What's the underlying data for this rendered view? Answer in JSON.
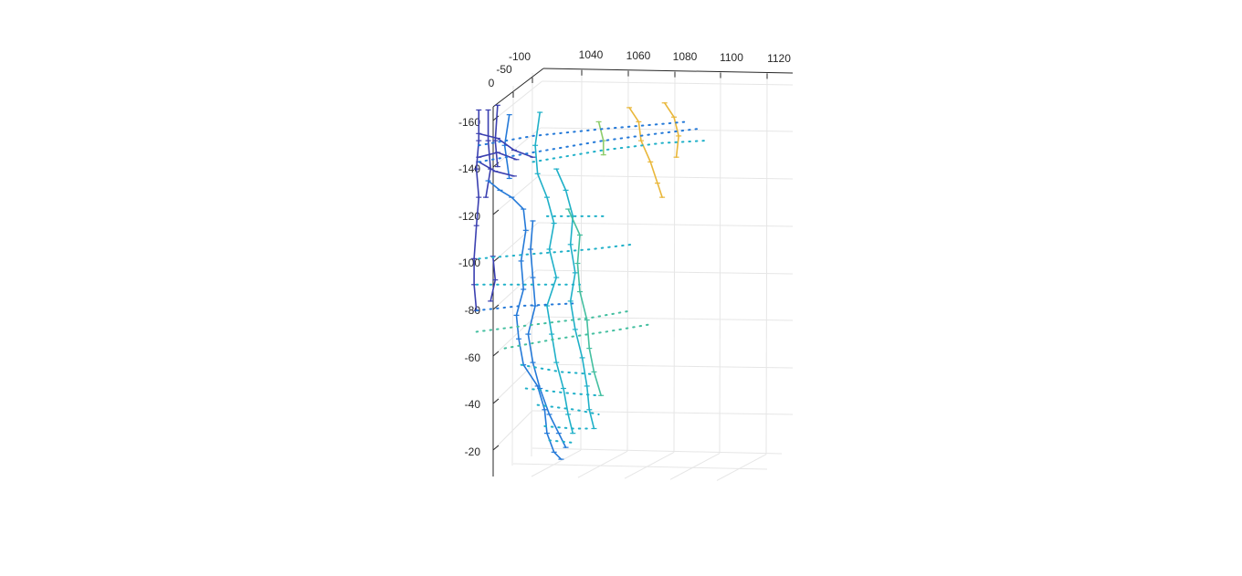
{
  "chart_data": {
    "type": "scatter3d",
    "title": "",
    "xlabel": "",
    "ylabel": "",
    "zlabel": "",
    "grid": true,
    "legend": "none",
    "colormap": "parula",
    "x_axis": {
      "ticks": [
        "1040",
        "1060",
        "1080",
        "1100",
        "1120"
      ],
      "range": [
        1020,
        1127
      ]
    },
    "y_axis": {
      "ticks": [
        "-100",
        "-50",
        "0"
      ],
      "range": [
        -100,
        0
      ]
    },
    "z_axis": {
      "ticks": [
        "-160",
        "-140",
        "-120",
        "-100",
        "-80",
        "-60",
        "-40",
        "-20"
      ],
      "range": [
        -175,
        -12
      ]
    },
    "colors": {
      "dark_blue": "#3a3fb0",
      "blue": "#2479d8",
      "cyan": "#1fb0c8",
      "teal": "#44bfa0",
      "green": "#8dcc6a",
      "yellow_orange": "#e9b73a",
      "yellow": "#f7d13d",
      "grid": "#e6e6e6",
      "axis": "#262626"
    },
    "series": [
      {
        "color": "dark_blue",
        "style": "solid",
        "points": [
          [
            1017,
            -165
          ],
          [
            1017,
            -152
          ],
          [
            1016,
            -140
          ],
          [
            1017,
            -128
          ],
          [
            1016,
            -116
          ],
          [
            1015,
            -102
          ],
          [
            1015,
            -91
          ],
          [
            1016,
            -80
          ]
        ]
      },
      {
        "color": "dark_blue",
        "style": "solid",
        "points": [
          [
            1021,
            -165
          ],
          [
            1021,
            -152
          ],
          [
            1022,
            -140
          ],
          [
            1020,
            -128
          ]
        ]
      },
      {
        "color": "dark_blue",
        "style": "solid",
        "points": [
          [
            1025,
            -167
          ],
          [
            1024,
            -152
          ],
          [
            1025,
            -141
          ]
        ]
      },
      {
        "color": "dark_blue",
        "style": "solid",
        "points": [
          [
            1023,
            -103
          ],
          [
            1024,
            -93
          ],
          [
            1022,
            -84
          ]
        ]
      },
      {
        "color": "blue",
        "style": "solid",
        "points": [
          [
            1030,
            -163
          ],
          [
            1028,
            -150
          ],
          [
            1030,
            -136
          ]
        ]
      },
      {
        "color": "blue",
        "style": "solid",
        "points": [
          [
            1021,
            -135
          ],
          [
            1026,
            -131
          ],
          [
            1031,
            -128
          ],
          [
            1036,
            -123
          ],
          [
            1037,
            -114
          ],
          [
            1035,
            -101
          ],
          [
            1036,
            -89
          ],
          [
            1033,
            -78
          ],
          [
            1034,
            -68
          ],
          [
            1036,
            -57
          ],
          [
            1042,
            -48
          ],
          [
            1045,
            -38
          ],
          [
            1046,
            -28
          ],
          [
            1049,
            -20
          ],
          [
            1052,
            -17
          ]
        ]
      },
      {
        "color": "dark_blue",
        "style": "solid",
        "points": [
          [
            1017,
            -155
          ],
          [
            1025,
            -153
          ],
          [
            1032,
            -148
          ],
          [
            1040,
            -145
          ]
        ]
      },
      {
        "color": "dark_blue",
        "style": "solid",
        "points": [
          [
            1017,
            -145
          ],
          [
            1025,
            -147
          ],
          [
            1033,
            -144
          ]
        ]
      },
      {
        "color": "dark_blue",
        "style": "solid",
        "points": [
          [
            1017,
            -143
          ],
          [
            1024,
            -139
          ],
          [
            1032,
            -137
          ]
        ]
      },
      {
        "color": "blue",
        "style": "solid",
        "points": [
          [
            1040,
            -118
          ],
          [
            1039,
            -106
          ],
          [
            1040,
            -94
          ],
          [
            1041,
            -82
          ],
          [
            1038,
            -70
          ],
          [
            1040,
            -58
          ],
          [
            1043,
            -47
          ],
          [
            1047,
            -36
          ],
          [
            1051,
            -28
          ],
          [
            1054,
            -22
          ]
        ]
      },
      {
        "color": "cyan",
        "style": "solid",
        "points": [
          [
            1043,
            -164
          ],
          [
            1041,
            -150
          ],
          [
            1042,
            -138
          ],
          [
            1046,
            -128
          ],
          [
            1049,
            -117
          ],
          [
            1047,
            -106
          ],
          [
            1050,
            -94
          ],
          [
            1046,
            -82
          ],
          [
            1048,
            -70
          ],
          [
            1050,
            -58
          ],
          [
            1053,
            -47
          ],
          [
            1055,
            -36
          ],
          [
            1057,
            -28
          ]
        ]
      },
      {
        "color": "cyan",
        "style": "solid",
        "points": [
          [
            1050,
            -140
          ],
          [
            1054,
            -131
          ],
          [
            1057,
            -120
          ],
          [
            1056,
            -108
          ],
          [
            1058,
            -96
          ],
          [
            1056,
            -84
          ],
          [
            1058,
            -72
          ],
          [
            1061,
            -60
          ],
          [
            1063,
            -48
          ],
          [
            1064,
            -38
          ],
          [
            1066,
            -30
          ]
        ]
      },
      {
        "color": "teal",
        "style": "solid",
        "points": [
          [
            1055,
            -123
          ],
          [
            1060,
            -112
          ],
          [
            1059,
            -100
          ],
          [
            1060,
            -88
          ],
          [
            1063,
            -76
          ],
          [
            1064,
            -64
          ],
          [
            1066,
            -54
          ],
          [
            1069,
            -44
          ]
        ]
      },
      {
        "color": "green",
        "style": "solid",
        "points": [
          [
            1068,
            -160
          ],
          [
            1070,
            -152
          ],
          [
            1070,
            -146
          ]
        ]
      },
      {
        "color": "yellow_orange",
        "style": "solid",
        "points": [
          [
            1081,
            -166
          ],
          [
            1085,
            -160
          ],
          [
            1086,
            -152
          ],
          [
            1090,
            -143
          ],
          [
            1093,
            -134
          ],
          [
            1095,
            -128
          ]
        ]
      },
      {
        "color": "yellow_orange",
        "style": "solid",
        "points": [
          [
            1096,
            -168
          ],
          [
            1100,
            -162
          ],
          [
            1102,
            -154
          ],
          [
            1101,
            -145
          ]
        ]
      },
      {
        "color": "blue",
        "style": "dotted",
        "points": [
          [
            1017,
            -150
          ],
          [
            1040,
            -154
          ],
          [
            1070,
            -157
          ],
          [
            1094,
            -159
          ],
          [
            1105,
            -160
          ]
        ]
      },
      {
        "color": "blue",
        "style": "dotted",
        "points": [
          [
            1017,
            -143
          ],
          [
            1040,
            -147
          ],
          [
            1070,
            -152
          ],
          [
            1093,
            -155
          ],
          [
            1110,
            -157
          ]
        ]
      },
      {
        "color": "cyan",
        "style": "dotted",
        "points": [
          [
            1040,
            -143
          ],
          [
            1070,
            -148
          ],
          [
            1095,
            -151
          ],
          [
            1113,
            -152
          ]
        ]
      },
      {
        "color": "cyan",
        "style": "dotted",
        "points": [
          [
            1046,
            -120
          ],
          [
            1070,
            -120
          ]
        ]
      },
      {
        "color": "cyan",
        "style": "dotted",
        "points": [
          [
            1017,
            -102
          ],
          [
            1040,
            -104
          ],
          [
            1065,
            -106
          ],
          [
            1082,
            -108
          ]
        ]
      },
      {
        "color": "cyan",
        "style": "dotted",
        "points": [
          [
            1016,
            -91
          ],
          [
            1040,
            -91
          ],
          [
            1060,
            -91
          ]
        ]
      },
      {
        "color": "blue",
        "style": "dotted",
        "points": [
          [
            1016,
            -80
          ],
          [
            1035,
            -82
          ],
          [
            1057,
            -83
          ]
        ]
      },
      {
        "color": "teal",
        "style": "dotted",
        "points": [
          [
            1016,
            -71
          ],
          [
            1040,
            -74
          ],
          [
            1065,
            -77
          ],
          [
            1082,
            -80
          ]
        ]
      },
      {
        "color": "teal",
        "style": "dotted",
        "points": [
          [
            1028,
            -64
          ],
          [
            1050,
            -68
          ],
          [
            1071,
            -71
          ],
          [
            1089,
            -74
          ]
        ]
      },
      {
        "color": "cyan",
        "style": "dotted",
        "points": [
          [
            1035,
            -57
          ],
          [
            1052,
            -54
          ],
          [
            1066,
            -53
          ]
        ]
      },
      {
        "color": "cyan",
        "style": "dotted",
        "points": [
          [
            1037,
            -47
          ],
          [
            1055,
            -45
          ],
          [
            1068,
            -44
          ]
        ]
      },
      {
        "color": "cyan",
        "style": "dotted",
        "points": [
          [
            1042,
            -40
          ],
          [
            1058,
            -38
          ],
          [
            1068,
            -36
          ]
        ]
      },
      {
        "color": "cyan",
        "style": "dotted",
        "points": [
          [
            1045,
            -31
          ],
          [
            1057,
            -30
          ],
          [
            1065,
            -30
          ]
        ]
      },
      {
        "color": "cyan",
        "style": "dotted",
        "points": [
          [
            1047,
            -25
          ],
          [
            1057,
            -24
          ]
        ]
      }
    ]
  }
}
